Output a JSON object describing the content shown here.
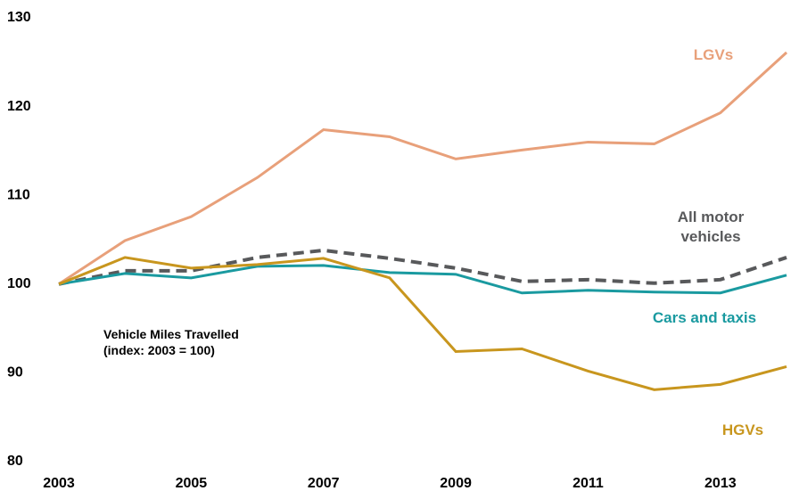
{
  "chart_data": {
    "type": "line",
    "annotation": [
      "Vehicle Miles Travelled",
      "(index: 2003 = 100)"
    ],
    "x": [
      2003,
      2004,
      2005,
      2006,
      2007,
      2008,
      2009,
      2010,
      2011,
      2012,
      2013,
      2014
    ],
    "series": [
      {
        "name": "LGVs",
        "color": "#e8a07a",
        "dashed": false,
        "values": [
          100,
          104.9,
          107.6,
          112,
          117.4,
          116.6,
          114.1,
          115.1,
          116,
          115.8,
          119.3,
          126.1
        ]
      },
      {
        "name": "All motor vehicles",
        "color": "#58595b",
        "dashed": true,
        "values": [
          100,
          101.5,
          101.5,
          103,
          103.8,
          102.9,
          101.8,
          100.3,
          100.5,
          100.1,
          100.5,
          103
        ]
      },
      {
        "name": "Cars and taxis",
        "color": "#1a9aa0",
        "dashed": false,
        "values": [
          100,
          101.2,
          100.7,
          102,
          102.1,
          101.3,
          101.1,
          99,
          99.3,
          99.1,
          99,
          101
        ]
      },
      {
        "name": "HGVs",
        "color": "#c8961e",
        "dashed": false,
        "values": [
          100,
          103,
          101.8,
          102.2,
          102.9,
          100.7,
          92.4,
          92.7,
          90.2,
          88.1,
          88.7,
          90.7
        ]
      }
    ],
    "xlim": [
      2003,
      2014
    ],
    "xticks": [
      2003,
      2005,
      2007,
      2009,
      2011,
      2013
    ],
    "ylim": [
      80,
      130
    ],
    "yticks": [
      80,
      90,
      100,
      110,
      120,
      130
    ],
    "grid": false
  }
}
